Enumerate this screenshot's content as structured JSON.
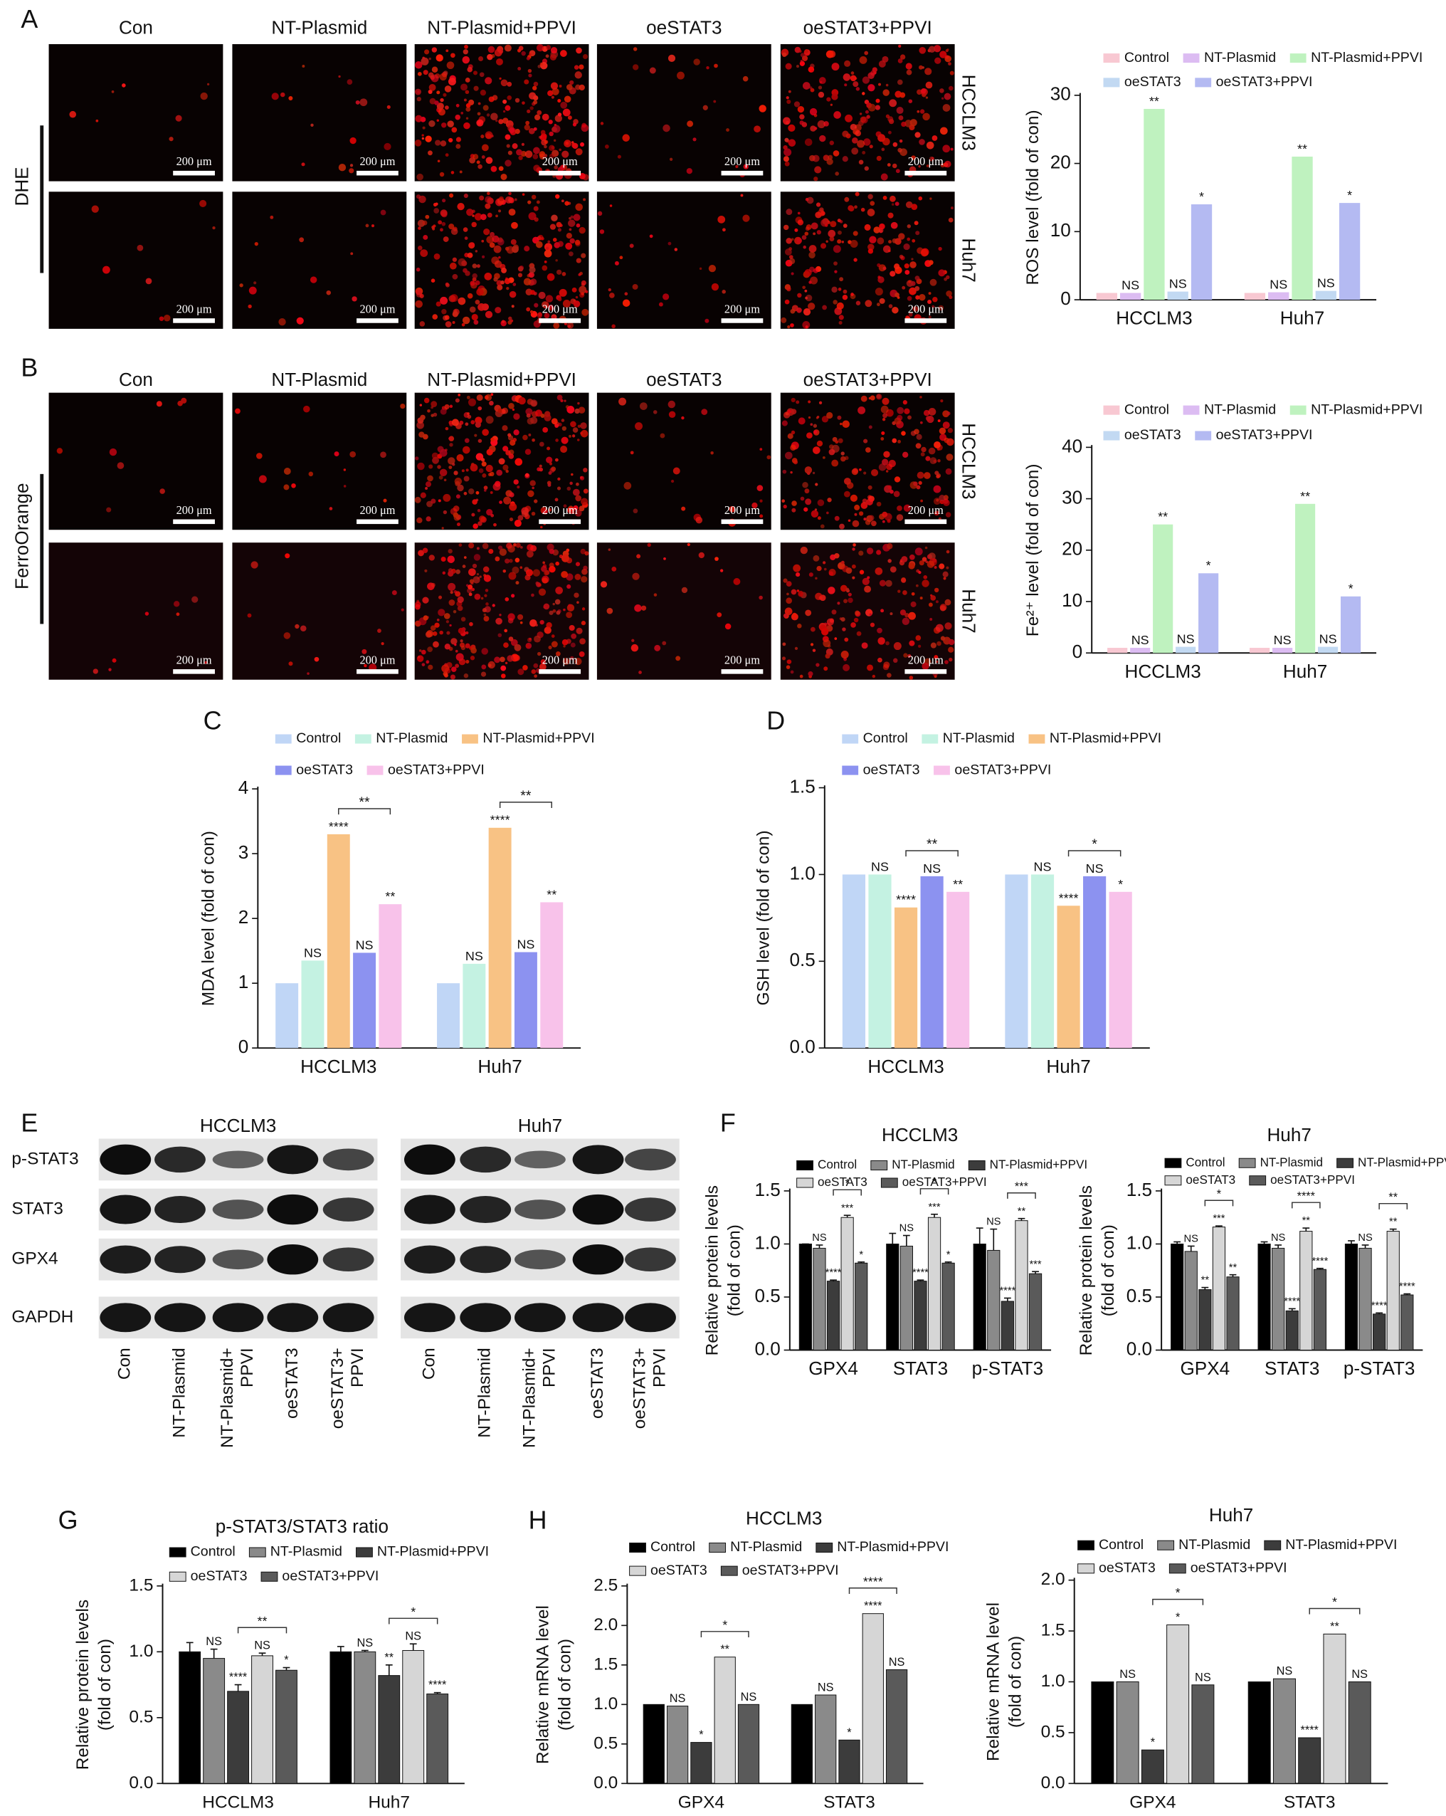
{
  "panel_labels": [
    "A",
    "B",
    "C",
    "D",
    "E",
    "F",
    "G",
    "H"
  ],
  "micrographs": [
    {
      "stain": "DHE",
      "columns": [
        "Con",
        "NT-Plasmid",
        "NT-Plasmid+PPVI",
        "oeSTAT3",
        "oeSTAT3+PPVI"
      ],
      "rows": [
        "HCCLM3",
        "Huh7"
      ],
      "scale_bar": "200 μm"
    },
    {
      "stain": "FerroOrange",
      "columns": [
        "Con",
        "NT-Plasmid",
        "NT-Plasmid+PPVI",
        "oeSTAT3",
        "oeSTAT3+PPVI"
      ],
      "rows": [
        "HCCLM3",
        "Huh7"
      ],
      "scale_bar": "200 μm"
    }
  ],
  "blot": {
    "titles": [
      "HCCLM3",
      "Huh7"
    ],
    "proteins": [
      "p-STAT3",
      "STAT3",
      "GPX4",
      "GAPDH"
    ],
    "lanes": [
      [
        "Con"
      ],
      [
        "NT-Plasmid"
      ],
      [
        "NT-Plasmid+",
        "PPVI"
      ],
      [
        "oeSTAT3"
      ],
      [
        "oeSTAT3+",
        "PPVI"
      ]
    ]
  },
  "chart_data": [
    {
      "type": "bar",
      "ylabel": "ROS level (fold of con)",
      "categories": [
        "HCCLM3",
        "Huh7"
      ],
      "ylim": [
        0,
        30
      ],
      "yticks": [
        0,
        10,
        20,
        30
      ],
      "series": [
        {
          "name": "Control",
          "color": "#f8c8d2",
          "values": [
            1,
            1
          ]
        },
        {
          "name": "NT-Plasmid",
          "color": "#dcbcf2",
          "values": [
            1,
            1.1
          ],
          "significance": [
            "NS",
            "NS"
          ]
        },
        {
          "name": "NT-Plasmid+PPVI",
          "color": "#bff2bf",
          "values": [
            28,
            21
          ],
          "significance": [
            "**",
            "**"
          ]
        },
        {
          "name": "oeSTAT3",
          "color": "#c2d9f2",
          "values": [
            1.2,
            1.3
          ],
          "significance": [
            "NS",
            "NS"
          ]
        },
        {
          "name": "oeSTAT3+PPVI",
          "color": "#b4baf2",
          "values": [
            14,
            14.2
          ],
          "significance": [
            "*",
            "*"
          ]
        }
      ]
    },
    {
      "type": "bar",
      "ylabel": "Fe²⁺ level (fold of con)",
      "categories": [
        "HCCLM3",
        "Huh7"
      ],
      "ylim": [
        0,
        40
      ],
      "yticks": [
        0,
        10,
        20,
        30,
        40
      ],
      "series": [
        {
          "name": "Control",
          "color": "#f8c8d2",
          "values": [
            1,
            1
          ]
        },
        {
          "name": "NT-Plasmid",
          "color": "#dcbcf2",
          "values": [
            1,
            1
          ],
          "significance": [
            "NS",
            "NS"
          ]
        },
        {
          "name": "NT-Plasmid+PPVI",
          "color": "#bff2bf",
          "values": [
            25,
            29
          ],
          "significance": [
            "**",
            "**"
          ]
        },
        {
          "name": "oeSTAT3",
          "color": "#c2d9f2",
          "values": [
            1.2,
            1.2
          ],
          "significance": [
            "NS",
            "NS"
          ]
        },
        {
          "name": "oeSTAT3+PPVI",
          "color": "#b4baf2",
          "values": [
            15.5,
            11
          ],
          "significance": [
            "*",
            "*"
          ]
        }
      ]
    },
    {
      "type": "bar",
      "ylabel": "MDA level (fold of con)",
      "categories": [
        "HCCLM3",
        "Huh7"
      ],
      "ylim": [
        0,
        4
      ],
      "yticks": [
        0,
        1,
        2,
        3,
        4
      ],
      "brackets": [
        "**",
        "**"
      ],
      "series": [
        {
          "name": "Control",
          "color": "#c0d6f6",
          "values": [
            1,
            1
          ]
        },
        {
          "name": "NT-Plasmid",
          "color": "#c4f2e2",
          "values": [
            1.35,
            1.3
          ],
          "significance": [
            "NS",
            "NS"
          ]
        },
        {
          "name": "NT-Plasmid+PPVI",
          "color": "#f8c284",
          "values": [
            3.3,
            3.4
          ],
          "significance": [
            "****",
            "****"
          ]
        },
        {
          "name": "oeSTAT3",
          "color": "#8c92f0",
          "values": [
            1.47,
            1.48
          ],
          "significance": [
            "NS",
            "NS"
          ]
        },
        {
          "name": "oeSTAT3+PPVI",
          "color": "#f8c2ea",
          "values": [
            2.22,
            2.25
          ],
          "significance": [
            "**",
            "**"
          ]
        }
      ]
    },
    {
      "type": "bar",
      "ylabel": "GSH level (fold of con)",
      "categories": [
        "HCCLM3",
        "Huh7"
      ],
      "ylim": [
        0,
        1.5
      ],
      "yticks": [
        {
          "value": 0,
          "label": "0.0"
        },
        0.5,
        {
          "value": 1,
          "label": "1.0"
        },
        1.5
      ],
      "brackets": [
        "**",
        "*"
      ],
      "series": [
        {
          "name": "Control",
          "color": "#c0d6f6",
          "values": [
            1,
            1
          ]
        },
        {
          "name": "NT-Plasmid",
          "color": "#c4f2e2",
          "values": [
            1,
            1
          ],
          "significance": [
            "NS",
            "NS"
          ]
        },
        {
          "name": "NT-Plasmid+PPVI",
          "color": "#f8c284",
          "values": [
            0.81,
            0.82
          ],
          "significance": [
            "****",
            "****"
          ]
        },
        {
          "name": "oeSTAT3",
          "color": "#8c92f0",
          "values": [
            0.99,
            0.99
          ],
          "significance": [
            "NS",
            "NS"
          ]
        },
        {
          "name": "oeSTAT3+PPVI",
          "color": "#f8c2ea",
          "values": [
            0.9,
            0.9
          ],
          "significance": [
            "**",
            "*"
          ]
        }
      ]
    },
    {
      "type": "bar",
      "title": "HCCLM3",
      "ylabel": [
        "Relative protein levels",
        "(fold of con)"
      ],
      "categories": [
        "GPX4",
        "STAT3",
        "p-STAT3"
      ],
      "ylim": [
        0,
        1.5
      ],
      "yticks": [
        {
          "value": 0,
          "label": "0.0"
        },
        0.5,
        {
          "value": 1,
          "label": "1.0"
        },
        1.5
      ],
      "brackets": [
        "*",
        "*",
        "***"
      ],
      "series": [
        {
          "name": "Control",
          "color": "#000000",
          "values": [
            1,
            1,
            1
          ],
          "errors": [
            0,
            0.1,
            0.15
          ]
        },
        {
          "name": "NT-Plasmid",
          "color": "#8a8a8a",
          "values": [
            0.96,
            0.98,
            0.94
          ],
          "errors": [
            0.03,
            0.1,
            0.2
          ],
          "significance": [
            "NS",
            "NS",
            "NS"
          ]
        },
        {
          "name": "NT-Plasmid+PPVI",
          "color": "#3c3c3c",
          "values": [
            0.65,
            0.65,
            0.46
          ],
          "errors": [
            0.01,
            0.01,
            0.03
          ],
          "significance": [
            "****",
            "****",
            "****"
          ]
        },
        {
          "name": "oeSTAT3",
          "color": "#d6d6d6",
          "values": [
            1.25,
            1.25,
            1.22
          ],
          "errors": [
            0.02,
            0.03,
            0.02
          ],
          "significance": [
            "***",
            "***",
            "**"
          ]
        },
        {
          "name": "oeSTAT3+PPVI",
          "color": "#5a5a5a",
          "values": [
            0.82,
            0.82,
            0.72
          ],
          "errors": [
            0.01,
            0.01,
            0.02
          ],
          "significance": [
            "*",
            "*",
            "***"
          ]
        }
      ]
    },
    {
      "type": "bar",
      "title": "Huh7",
      "ylabel": [
        "Relative protein levels",
        "(fold of con)"
      ],
      "categories": [
        "GPX4",
        "STAT3",
        "p-STAT3"
      ],
      "ylim": [
        0,
        1.5
      ],
      "yticks": [
        {
          "value": 0,
          "label": "0.0"
        },
        0.5,
        {
          "value": 1,
          "label": "1.0"
        },
        1.5
      ],
      "brackets": [
        "*",
        "****",
        "**"
      ],
      "series": [
        {
          "name": "Control",
          "color": "#000000",
          "values": [
            1,
            1,
            1
          ],
          "errors": [
            0.02,
            0.02,
            0.03
          ]
        },
        {
          "name": "NT-Plasmid",
          "color": "#8a8a8a",
          "values": [
            0.93,
            0.96,
            0.96
          ],
          "errors": [
            0.05,
            0.03,
            0.03
          ],
          "significance": [
            "NS",
            "NS",
            "NS"
          ]
        },
        {
          "name": "NT-Plasmid+PPVI",
          "color": "#3c3c3c",
          "values": [
            0.57,
            0.37,
            0.34
          ],
          "errors": [
            0.02,
            0.02,
            0.01
          ],
          "significance": [
            "**",
            "****",
            "****"
          ]
        },
        {
          "name": "oeSTAT3",
          "color": "#d6d6d6",
          "values": [
            1.16,
            1.12,
            1.12
          ],
          "errors": [
            0.01,
            0.03,
            0.02
          ],
          "significance": [
            "***",
            "**",
            "**"
          ]
        },
        {
          "name": "oeSTAT3+PPVI",
          "color": "#5a5a5a",
          "values": [
            0.69,
            0.76,
            0.52
          ],
          "errors": [
            0.02,
            0.01,
            0.01
          ],
          "significance": [
            "**",
            "****",
            "****"
          ]
        }
      ]
    },
    {
      "type": "bar",
      "title": "p-STAT3/STAT3 ratio",
      "ylabel": [
        "Relative protein levels",
        "(fold of con)"
      ],
      "categories": [
        "HCCLM3",
        "Huh7"
      ],
      "ylim": [
        0,
        1.5
      ],
      "yticks": [
        {
          "value": 0,
          "label": "0.0"
        },
        0.5,
        {
          "value": 1,
          "label": "1.0"
        },
        1.5
      ],
      "brackets": [
        "**",
        "*"
      ],
      "series": [
        {
          "name": "Control",
          "color": "#000000",
          "values": [
            1,
            1
          ],
          "errors": [
            0.07,
            0.04
          ]
        },
        {
          "name": "NT-Plasmid",
          "color": "#8a8a8a",
          "values": [
            0.95,
            1
          ],
          "errors": [
            0.07,
            0.01
          ],
          "significance": [
            "NS",
            "NS"
          ]
        },
        {
          "name": "NT-Plasmid+PPVI",
          "color": "#3c3c3c",
          "values": [
            0.7,
            0.82
          ],
          "errors": [
            0.05,
            0.08
          ],
          "significance": [
            "****",
            "**"
          ]
        },
        {
          "name": "oeSTAT3",
          "color": "#d6d6d6",
          "values": [
            0.97,
            1.01
          ],
          "errors": [
            0.02,
            0.05
          ],
          "significance": [
            "NS",
            "NS"
          ]
        },
        {
          "name": "oeSTAT3+PPVI",
          "color": "#5a5a5a",
          "values": [
            0.86,
            0.68
          ],
          "errors": [
            0.02,
            0.01
          ],
          "significance": [
            "*",
            "****"
          ]
        }
      ]
    },
    {
      "type": "bar",
      "title": "HCCLM3",
      "ylabel": [
        "Relative mRNA level",
        "(fold of con)"
      ],
      "categories": [
        "GPX4",
        "STAT3"
      ],
      "ylim": [
        0,
        2.5
      ],
      "yticks": [
        {
          "value": 0,
          "label": "0.0"
        },
        0.5,
        {
          "value": 1,
          "label": "1.0"
        },
        1.5,
        {
          "value": 2,
          "label": "2.0"
        },
        2.5
      ],
      "brackets": [
        "*",
        "****"
      ],
      "series": [
        {
          "name": "Control",
          "color": "#000000",
          "values": [
            1,
            1
          ]
        },
        {
          "name": "NT-Plasmid",
          "color": "#8a8a8a",
          "values": [
            0.98,
            1.12
          ],
          "significance": [
            "NS",
            "NS"
          ]
        },
        {
          "name": "NT-Plasmid+PPVI",
          "color": "#3c3c3c",
          "values": [
            0.52,
            0.55
          ],
          "significance": [
            "*",
            "*"
          ]
        },
        {
          "name": "oeSTAT3",
          "color": "#d6d6d6",
          "values": [
            1.6,
            2.15
          ],
          "significance": [
            "**",
            "****"
          ]
        },
        {
          "name": "oeSTAT3+PPVI",
          "color": "#5a5a5a",
          "values": [
            1,
            1.44
          ],
          "significance": [
            "NS",
            "NS"
          ]
        }
      ]
    },
    {
      "type": "bar",
      "title": "Huh7",
      "ylabel": [
        "Relative mRNA level",
        "(fold of con)"
      ],
      "categories": [
        "GPX4",
        "STAT3"
      ],
      "ylim": [
        0,
        2
      ],
      "yticks": [
        {
          "value": 0,
          "label": "0.0"
        },
        0.5,
        {
          "value": 1,
          "label": "1.0"
        },
        1.5,
        {
          "value": 2,
          "label": "2.0"
        }
      ],
      "brackets": [
        "*",
        "*"
      ],
      "series": [
        {
          "name": "Control",
          "color": "#000000",
          "values": [
            1,
            1
          ]
        },
        {
          "name": "NT-Plasmid",
          "color": "#8a8a8a",
          "values": [
            1,
            1.03
          ],
          "significance": [
            "NS",
            "NS"
          ]
        },
        {
          "name": "NT-Plasmid+PPVI",
          "color": "#3c3c3c",
          "values": [
            0.33,
            0.45
          ],
          "significance": [
            "*",
            "****"
          ]
        },
        {
          "name": "oeSTAT3",
          "color": "#d6d6d6",
          "values": [
            1.56,
            1.47
          ],
          "significance": [
            "*",
            "**"
          ]
        },
        {
          "name": "oeSTAT3+PPVI",
          "color": "#5a5a5a",
          "values": [
            0.97,
            1
          ],
          "significance": [
            "NS",
            "NS"
          ]
        }
      ]
    }
  ]
}
